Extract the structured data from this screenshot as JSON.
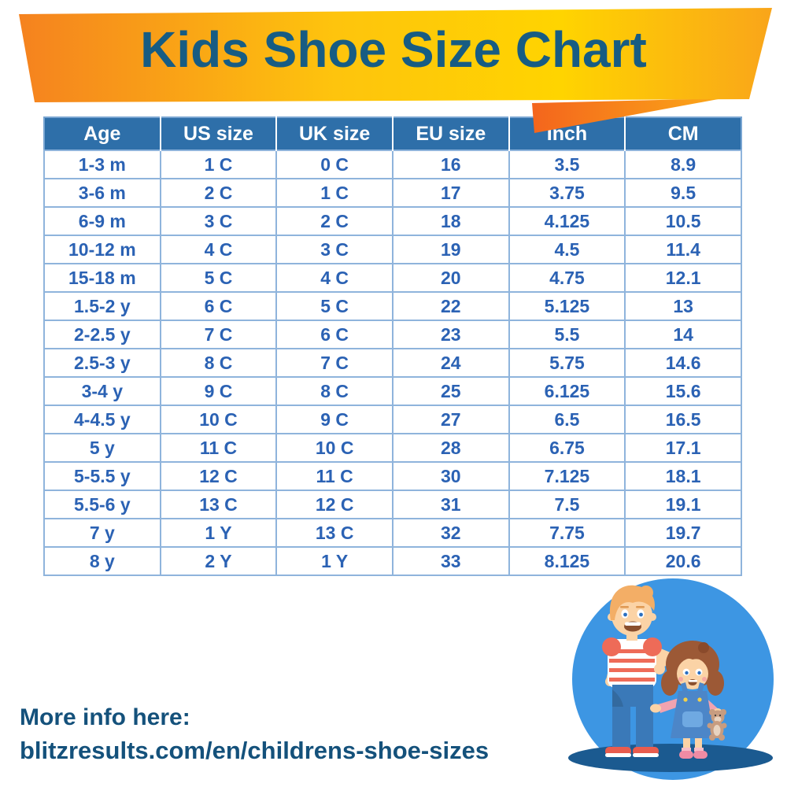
{
  "title": "Kids Shoe Size Chart",
  "chart_data": {
    "type": "table",
    "title": "Kids Shoe Size Chart",
    "columns": [
      "Age",
      "US size",
      "UK size",
      "EU size",
      "Inch",
      "CM"
    ],
    "rows": [
      [
        "1-3 m",
        "1 C",
        "0 C",
        "16",
        "3.5",
        "8.9"
      ],
      [
        "3-6 m",
        "2 C",
        "1 C",
        "17",
        "3.75",
        "9.5"
      ],
      [
        "6-9 m",
        "3 C",
        "2 C",
        "18",
        "4.125",
        "10.5"
      ],
      [
        "10-12 m",
        "4 C",
        "3 C",
        "19",
        "4.5",
        "11.4"
      ],
      [
        "15-18 m",
        "5 C",
        "4 C",
        "20",
        "4.75",
        "12.1"
      ],
      [
        "1.5-2 y",
        "6 C",
        "5 C",
        "22",
        "5.125",
        "13"
      ],
      [
        "2-2.5 y",
        "7 C",
        "6 C",
        "23",
        "5.5",
        "14"
      ],
      [
        "2.5-3 y",
        "8 C",
        "7 C",
        "24",
        "5.75",
        "14.6"
      ],
      [
        "3-4 y",
        "9 C",
        "8 C",
        "25",
        "6.125",
        "15.6"
      ],
      [
        "4-4.5 y",
        "10 C",
        "9 C",
        "27",
        "6.5",
        "16.5"
      ],
      [
        "5 y",
        "11 C",
        "10 C",
        "28",
        "6.75",
        "17.1"
      ],
      [
        "5-5.5 y",
        "12 C",
        "11 C",
        "30",
        "7.125",
        "18.1"
      ],
      [
        "5.5-6 y",
        "13 C",
        "12 C",
        "31",
        "7.5",
        "19.1"
      ],
      [
        "7 y",
        "1 Y",
        "13 C",
        "32",
        "7.75",
        "19.7"
      ],
      [
        "8 y",
        "2 Y",
        "1 Y",
        "33",
        "8.125",
        "20.6"
      ]
    ]
  },
  "footer": {
    "line1": "More info here:",
    "line2": "blitzresults.com/en/childrens-shoe-sizes"
  },
  "illustration": {
    "description": "Cartoon boy and girl with teddy bear standing on a blue circle"
  },
  "colors": {
    "ribbon_orange": "#F5821F",
    "ribbon_gold": "#FEC40D",
    "ribbon_yellow": "#FFD400",
    "ribbon_right": "#F9A51A",
    "fold_deep_orange": "#F4651D",
    "fold_light_orange": "#FBA817",
    "title_text": "#175C83",
    "header_bg": "#2E6FA9",
    "header_text": "#FFFFFF",
    "cell_text": "#2B62B4",
    "grid_line": "#8FB4DC",
    "footer_text": "#14517B",
    "circle_blue": "#3D96E3",
    "shadow_navy": "#1B5A90"
  }
}
